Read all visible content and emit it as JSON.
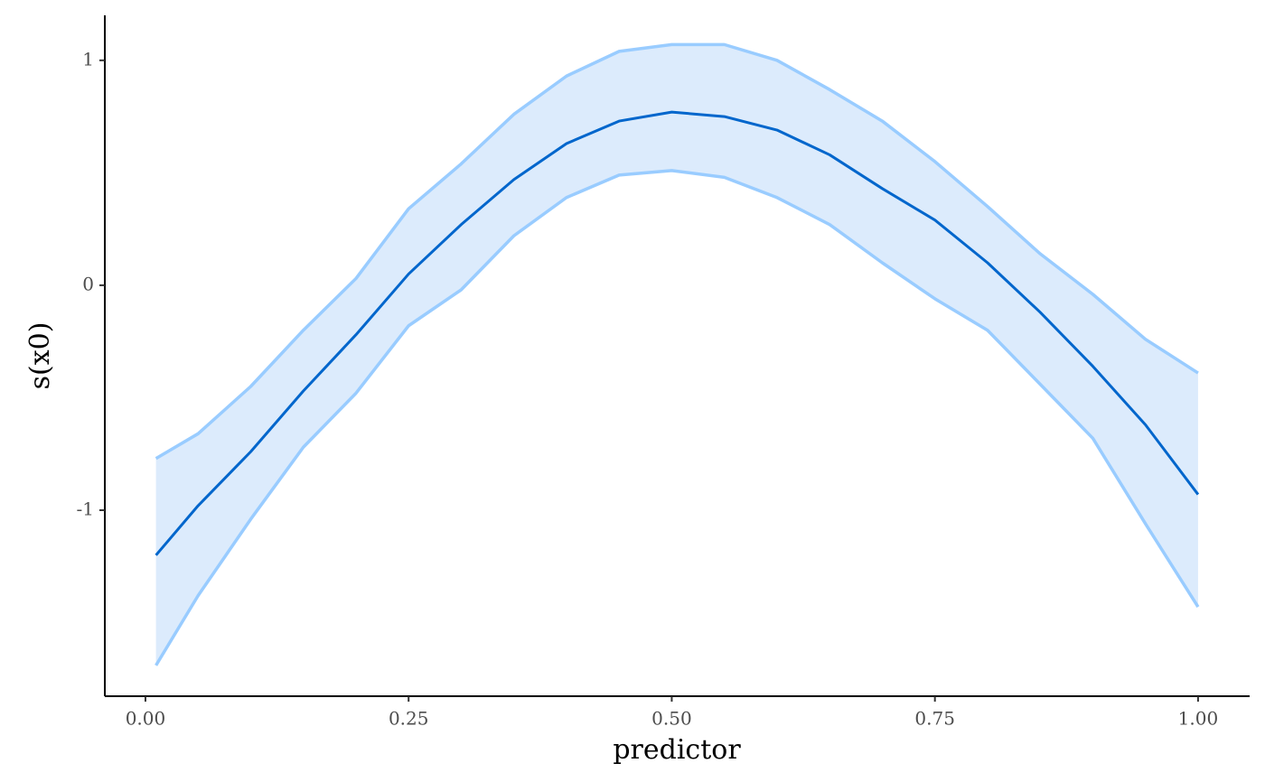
{
  "chart_data": {
    "type": "ribbon-line",
    "x_label": "predictor",
    "y_label": "s(x0)",
    "x": [
      0.01,
      0.05,
      0.1,
      0.15,
      0.2,
      0.25,
      0.3,
      0.35,
      0.4,
      0.45,
      0.5,
      0.55,
      0.6,
      0.65,
      0.7,
      0.75,
      0.8,
      0.85,
      0.9,
      0.95,
      1.0
    ],
    "values": [
      -1.2,
      -0.98,
      -0.74,
      -0.47,
      -0.22,
      0.05,
      0.27,
      0.47,
      0.63,
      0.73,
      0.77,
      0.75,
      0.69,
      0.58,
      0.43,
      0.29,
      0.1,
      -0.12,
      -0.36,
      -0.62,
      -0.93
    ],
    "lower": [
      -1.69,
      -1.38,
      -1.04,
      -0.72,
      -0.48,
      -0.18,
      -0.02,
      0.22,
      0.39,
      0.49,
      0.51,
      0.48,
      0.39,
      0.27,
      0.1,
      -0.06,
      -0.2,
      -0.44,
      -0.68,
      -1.06,
      -1.43
    ],
    "upper": [
      -0.77,
      -0.66,
      -0.45,
      -0.2,
      0.03,
      0.34,
      0.54,
      0.76,
      0.93,
      1.04,
      1.07,
      1.07,
      1.0,
      0.87,
      0.73,
      0.55,
      0.35,
      0.14,
      -0.04,
      -0.24,
      -0.39
    ],
    "color": "#0066cc",
    "band_line_color": "#99ccff",
    "band_fill_color": "#dcebfc",
    "xlim": [
      -0.0386,
      1.049
    ],
    "ylim": [
      -1.827,
      1.2
    ],
    "xticks": [
      {
        "value": 0,
        "label": "0.00"
      },
      {
        "value": 0.25,
        "label": "0.25"
      },
      {
        "value": 0.5,
        "label": "0.50"
      },
      {
        "value": 0.75,
        "label": "0.75"
      },
      {
        "value": 1,
        "label": "1.00"
      }
    ],
    "yticks": [
      -1,
      0,
      1
    ]
  }
}
